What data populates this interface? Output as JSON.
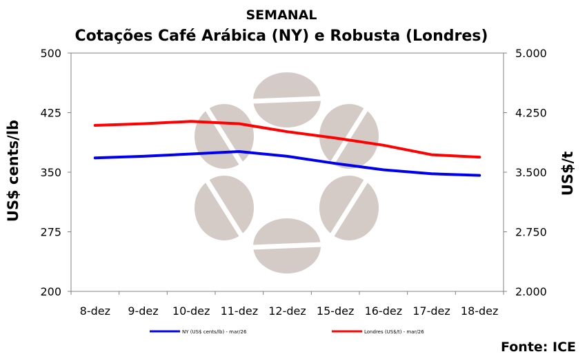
{
  "chart_data": {
    "type": "line",
    "title": "SEMANAL",
    "subtitle": "Cotações Café Arábica (NY) e Robusta (Londres)",
    "source": "Fonte: ICE",
    "categories": [
      "8-dez",
      "9-dez",
      "10-dez",
      "11-dez",
      "12-dez",
      "15-dez",
      "16-dez",
      "17-dez",
      "18-dez"
    ],
    "y_left": {
      "label": "US$ cents/lb",
      "range": [
        200,
        500
      ],
      "ticks": [
        "200",
        "275",
        "350",
        "425",
        "500"
      ],
      "tick_values": [
        200,
        275,
        350,
        425,
        500
      ]
    },
    "y_right": {
      "label": "US$/t",
      "range": [
        2000,
        5000
      ],
      "ticks": [
        "2.000",
        "2.750",
        "3.500",
        "4.250",
        "5.000"
      ],
      "tick_values": [
        2000,
        2750,
        3500,
        4250,
        5000
      ]
    },
    "series": [
      {
        "name": "NY (US$ cents/lb) - mar/26",
        "axis": "left",
        "color": "#0000ee",
        "values": [
          368,
          370,
          373,
          376,
          370,
          361,
          353,
          348,
          346
        ]
      },
      {
        "name": "Londres (US$/t) - mar/26",
        "axis": "right",
        "color": "#ff0000",
        "values": [
          4090,
          4110,
          4140,
          4110,
          4010,
          3930,
          3840,
          3720,
          3690
        ]
      }
    ],
    "grid": false,
    "legend": "bottom"
  }
}
